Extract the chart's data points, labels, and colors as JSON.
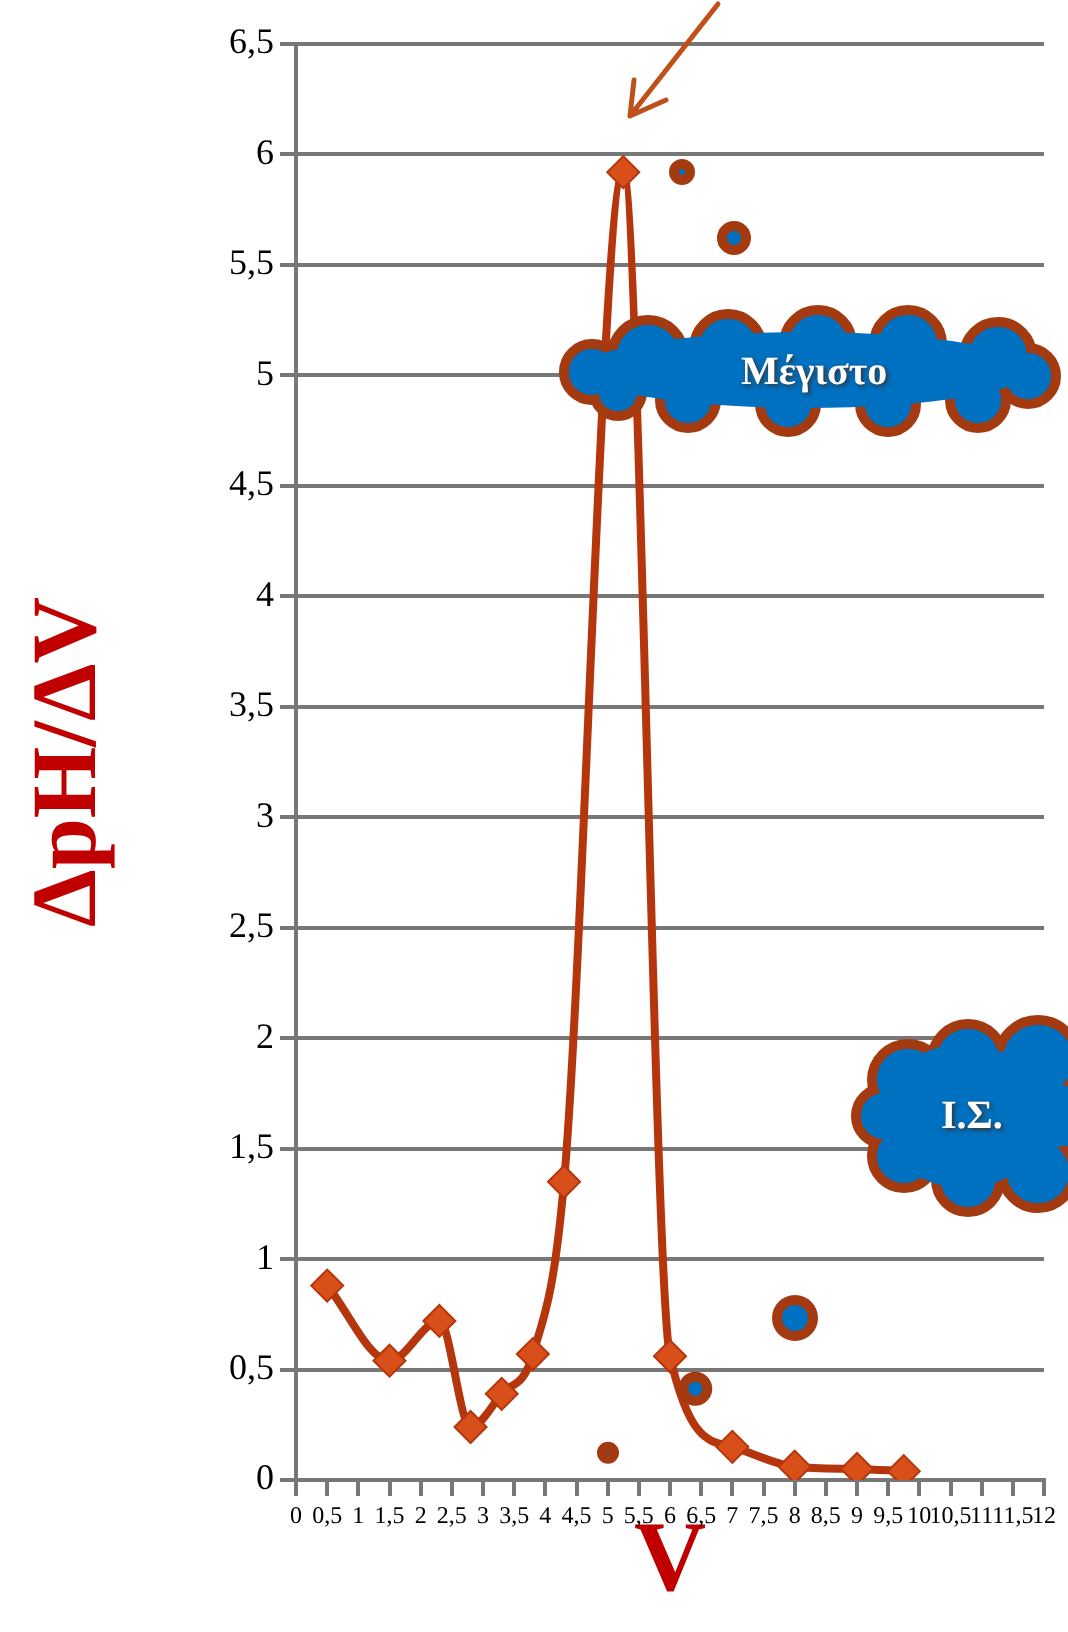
{
  "chart_data": {
    "type": "line",
    "xlabel": "V",
    "ylabel": "ΔpH/ΔV",
    "series": [
      {
        "color": "#b5360d",
        "x": [
          0.5,
          1.5,
          2.3,
          2.8,
          3.3,
          3.8,
          4.3,
          5.25,
          6.0,
          7.0,
          8.0,
          9.0,
          9.75
        ],
        "values": [
          0.88,
          0.54,
          0.72,
          0.24,
          0.39,
          0.57,
          1.35,
          5.92,
          0.56,
          0.15,
          0.06,
          0.05,
          0.04
        ]
      }
    ],
    "xlim": [
      0,
      12
    ],
    "xticks": [
      0,
      {
        "value": 0.5,
        "label": "0,5"
      },
      1,
      {
        "value": 1.5,
        "label": "1,5"
      },
      2,
      {
        "value": 2.5,
        "label": "2,5"
      },
      3,
      {
        "value": 3.5,
        "label": "3,5"
      },
      4,
      {
        "value": 4.5,
        "label": "4,5"
      },
      5,
      {
        "value": 5.5,
        "label": "5,5"
      },
      6,
      {
        "value": 6.5,
        "label": "6,5"
      },
      7,
      {
        "value": 7.5,
        "label": "7,5"
      },
      8,
      {
        "value": 8.5,
        "label": "8,5"
      },
      9,
      {
        "value": 9.5,
        "label": "9,5"
      },
      10,
      {
        "value": 10.5,
        "label": "10,5"
      },
      11,
      {
        "value": 11.5,
        "label": "11,5"
      },
      12
    ],
    "ylim": [
      0,
      6.5
    ],
    "yticks": [
      0,
      {
        "value": 0.5,
        "label": "0,5"
      },
      1,
      {
        "value": 1.5,
        "label": "1,5"
      },
      2,
      {
        "value": 2.5,
        "label": "2,5"
      },
      3,
      {
        "value": 3.5,
        "label": "3,5"
      },
      4,
      {
        "value": 4.5,
        "label": "4,5"
      },
      5,
      {
        "value": 5.5,
        "label": "5,5"
      },
      6,
      {
        "value": 6.5,
        "label": "6,5"
      }
    ],
    "grid": "y",
    "legend": false,
    "marker": "diamond",
    "line_style": "solid",
    "annotations": [
      "Μέγιστο",
      "Ι.Σ."
    ]
  }
}
